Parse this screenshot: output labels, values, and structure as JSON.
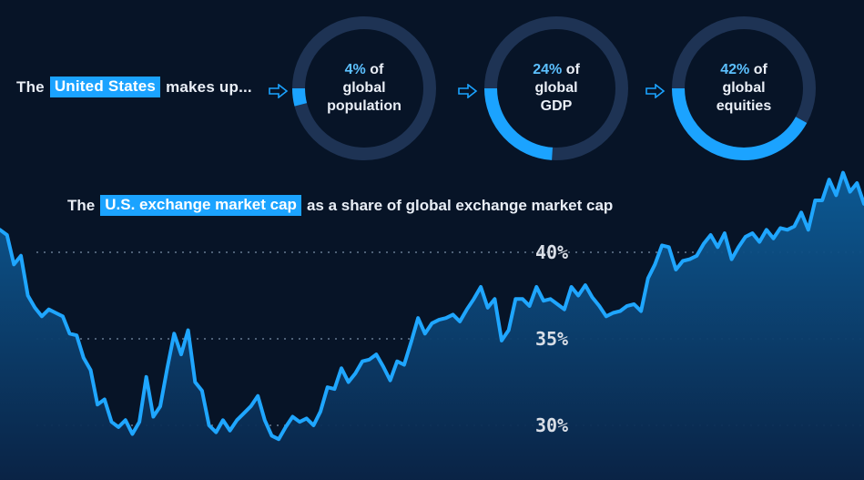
{
  "intro": {
    "prefix": "The",
    "highlight": "United States",
    "suffix": "makes up..."
  },
  "donuts": [
    {
      "pct_text": "4%",
      "of": "of",
      "line2": "global",
      "line3": "population",
      "share": 0.04
    },
    {
      "pct_text": "24%",
      "of": "of",
      "line2": "global",
      "line3": "GDP",
      "share": 0.24
    },
    {
      "pct_text": "42%",
      "of": "of",
      "line2": "global",
      "line3": "equities",
      "share": 0.42
    }
  ],
  "colors": {
    "background": "#071427",
    "accent": "#1ba3ff",
    "ring_track": "#1e3354",
    "line": "#1fa6ff"
  },
  "chart_title": {
    "prefix": "The",
    "highlight": "U.S. exchange market cap",
    "suffix": "as a share of global exchange market cap"
  },
  "chart_data": {
    "type": "area",
    "title": "",
    "xlabel": "",
    "ylabel": "",
    "y_ticks": [
      {
        "value": 40,
        "label": "40%"
      },
      {
        "value": 35,
        "label": "35%"
      },
      {
        "value": 30,
        "label": "30%"
      }
    ],
    "ylim": [
      24.5,
      42
    ],
    "grid": "dotted horizontal",
    "series": [
      {
        "values": [
          41.3,
          41.0,
          39.3,
          39.8,
          37.5,
          36.8,
          36.3,
          36.7,
          36.5,
          36.3,
          35.3,
          35.2,
          33.9,
          33.2,
          31.2,
          31.5,
          30.2,
          29.9,
          30.3,
          29.5,
          30.2,
          32.8,
          30.5,
          31.1,
          33.3,
          35.3,
          34.1,
          35.5,
          32.5,
          32.0,
          30.0,
          29.6,
          30.3,
          29.7,
          30.3,
          30.7,
          31.1,
          31.7,
          30.3,
          29.4,
          29.2,
          29.9,
          30.5,
          30.2,
          30.4,
          30.0,
          30.8,
          32.2,
          32.1,
          33.3,
          32.5,
          33.0,
          33.7,
          33.8,
          34.1,
          33.4,
          32.6,
          33.7,
          33.5,
          34.8,
          36.2,
          35.3,
          35.9,
          36.1,
          36.2,
          36.4,
          36.0,
          36.7,
          37.3,
          38.0,
          36.8,
          37.3,
          34.9,
          35.5,
          37.3,
          37.3,
          36.9,
          38.0,
          37.2,
          37.3,
          37.0,
          36.7,
          38.0,
          37.5,
          38.1,
          37.4,
          36.9,
          36.3,
          36.5,
          36.6,
          36.9,
          37.0,
          36.6,
          38.5,
          39.3,
          40.4,
          40.3,
          39.0,
          39.5,
          39.6,
          39.8,
          40.5,
          41.0,
          40.3,
          41.1,
          39.6,
          40.3,
          40.9,
          41.1,
          40.6,
          41.3,
          40.8,
          41.4,
          41.3,
          41.5,
          42.3,
          41.3,
          43.0,
          43.0,
          44.2,
          43.3,
          44.6,
          43.5,
          44.0,
          42.8
        ]
      }
    ]
  }
}
